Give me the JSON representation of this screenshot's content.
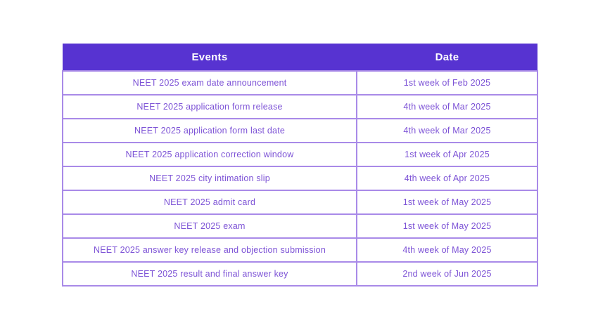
{
  "page": {
    "background_color": "#ffffff"
  },
  "table": {
    "columns": [
      "Events",
      "Date"
    ],
    "rows": [
      {
        "event": "NEET 2025 exam date announcement",
        "date": "1st week of Feb 2025"
      },
      {
        "event": "NEET 2025 application form release",
        "date": "4th week of Mar 2025"
      },
      {
        "event": "NEET 2025 application form last date",
        "date": "4th week of Mar 2025"
      },
      {
        "event": "NEET 2025 application correction window",
        "date": "1st week of Apr 2025"
      },
      {
        "event": "NEET 2025 city intimation slip",
        "date": "4th week of Apr 2025"
      },
      {
        "event": "NEET 2025 admit card",
        "date": "1st week of May 2025"
      },
      {
        "event": "NEET 2025 exam",
        "date": "1st week of May 2025"
      },
      {
        "event": "NEET 2025 answer key release and objection submission",
        "date": "4th week of May 2025"
      },
      {
        "event": "NEET 2025 result and final answer key",
        "date": "2nd week of Jun 2025"
      }
    ],
    "colors": {
      "header_background": "#5733d1",
      "header_text": "#ffffff",
      "cell_border": "#a98ae8",
      "cell_text": "#7d53d6",
      "cell_background": "#ffffff"
    }
  },
  "chart_data": {
    "type": "table",
    "title": "",
    "columns": [
      "Events",
      "Date"
    ],
    "rows": [
      [
        "NEET 2025 exam date announcement",
        "1st week of Feb 2025"
      ],
      [
        "NEET 2025 application form release",
        "4th week of Mar 2025"
      ],
      [
        "NEET 2025 application form last date",
        "4th week of Mar 2025"
      ],
      [
        "NEET 2025 application correction window",
        "1st week of Apr 2025"
      ],
      [
        "NEET 2025 city intimation slip",
        "4th week of Apr 2025"
      ],
      [
        "NEET 2025 admit card",
        "1st week of May 2025"
      ],
      [
        "NEET 2025 exam",
        "1st week of May 2025"
      ],
      [
        "NEET 2025 answer key release and objection submission",
        "4th week of May 2025"
      ],
      [
        "NEET 2025 result and final answer key",
        "2nd week of Jun 2025"
      ]
    ]
  }
}
